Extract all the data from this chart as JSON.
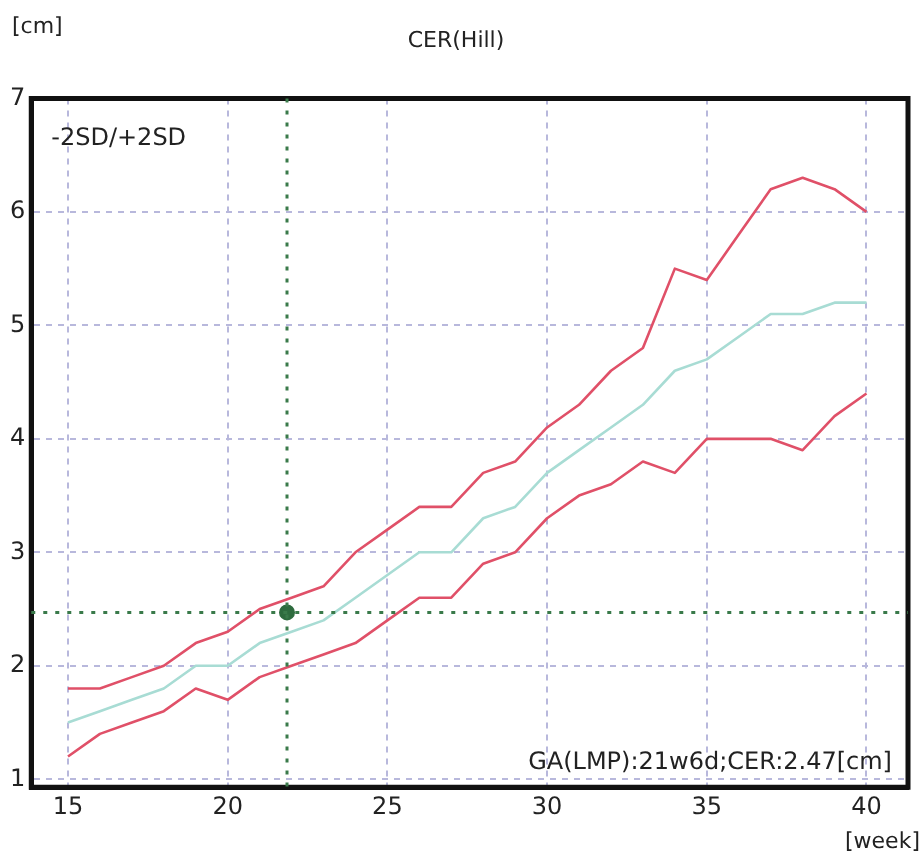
{
  "chart_data": {
    "type": "line",
    "title": "CER(Hill)",
    "xlabel": "[week]",
    "ylabel": "[cm]",
    "annotations": [
      "-2SD/+2SD",
      "GA(LMP):21w6d;CER:2.47[cm]"
    ],
    "x": [
      15,
      16,
      17,
      18,
      19,
      20,
      21,
      22,
      23,
      24,
      25,
      26,
      27,
      28,
      29,
      30,
      31,
      32,
      33,
      34,
      35,
      36,
      37,
      38,
      39,
      40
    ],
    "series": [
      {
        "color": "#e05068",
        "values": [
          1.8,
          1.8,
          1.9,
          2.0,
          2.2,
          2.3,
          2.5,
          2.6,
          2.7,
          3.0,
          3.2,
          3.4,
          3.4,
          3.7,
          3.8,
          4.1,
          4.3,
          4.6,
          4.8,
          5.5,
          5.4,
          5.8,
          6.2,
          6.3,
          6.2,
          6.0
        ]
      },
      {
        "color": "#a8dcd4",
        "values": [
          1.5,
          1.6,
          1.7,
          1.8,
          2.0,
          2.0,
          2.2,
          2.3,
          2.4,
          2.6,
          2.8,
          3.0,
          3.0,
          3.3,
          3.4,
          3.7,
          3.9,
          4.1,
          4.3,
          4.6,
          4.7,
          4.9,
          5.1,
          5.1,
          5.2,
          5.2
        ]
      },
      {
        "color": "#e05068",
        "values": [
          1.2,
          1.4,
          1.5,
          1.6,
          1.8,
          1.7,
          1.9,
          2.0,
          2.1,
          2.2,
          2.4,
          2.6,
          2.6,
          2.9,
          3.0,
          3.3,
          3.5,
          3.6,
          3.8,
          3.7,
          4.0,
          4.0,
          4.0,
          3.9,
          4.2,
          4.4
        ]
      },
      {
        "type": "scatter",
        "color": "#2e6b3e",
        "x": [
          21.857
        ],
        "values": [
          2.47
        ],
        "marker": "circle"
      }
    ],
    "ref_lines": [
      {
        "axis": "x",
        "value": 21.857,
        "color": "#3a7a4a",
        "line_style": "dotted"
      },
      {
        "axis": "y",
        "value": 2.47,
        "color": "#3a7a4a",
        "line_style": "dotted"
      }
    ],
    "xlim": [
      13.85,
      41.3
    ],
    "ylim": [
      0.93,
      7
    ],
    "xticks": [
      15,
      20,
      25,
      30,
      35,
      40
    ],
    "yticks": [
      1,
      2,
      3,
      4,
      5,
      6,
      7
    ],
    "grid": true,
    "legend": false,
    "marker": "none",
    "line_style": "solid"
  }
}
